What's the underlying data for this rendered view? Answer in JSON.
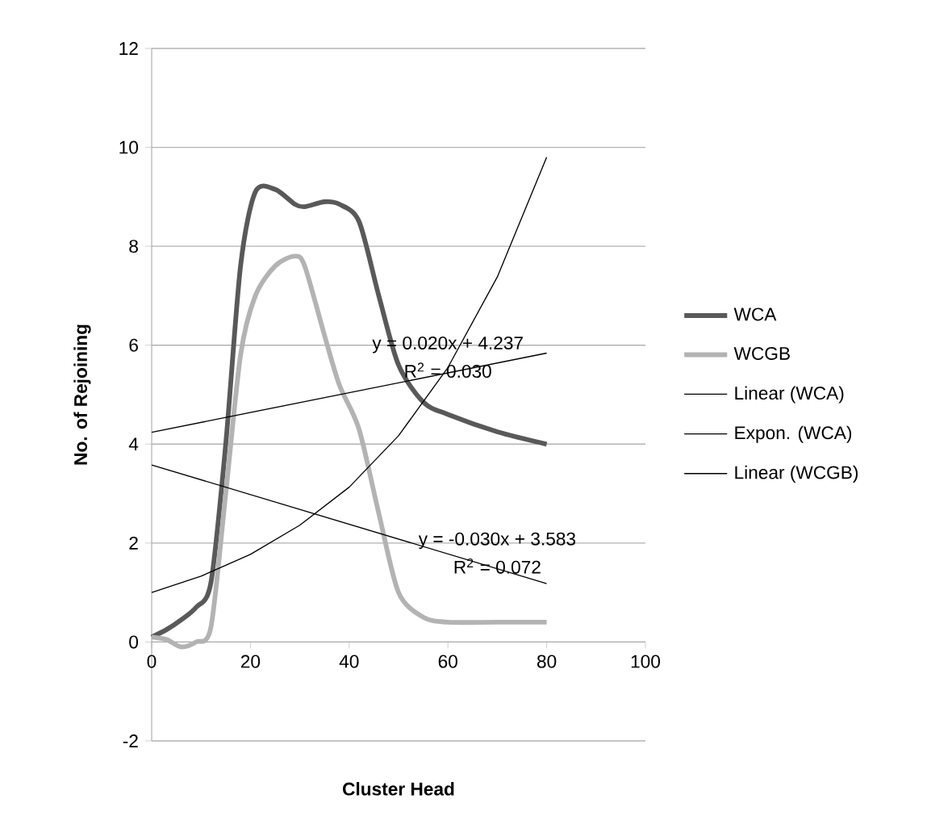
{
  "chart_data": {
    "type": "line",
    "xlabel": "Cluster Head",
    "ylabel": "No. of Rejoining",
    "x": [
      0,
      3,
      6,
      9,
      12,
      15,
      18,
      21,
      25,
      29,
      31,
      35,
      38,
      42,
      46,
      50,
      55,
      60,
      70,
      80
    ],
    "series": [
      {
        "name": "WCA",
        "color": "#595959",
        "values": [
          0.1,
          0.25,
          0.45,
          0.7,
          1.2,
          4.0,
          7.6,
          9.1,
          9.15,
          8.85,
          8.8,
          8.9,
          8.85,
          8.5,
          7.0,
          5.6,
          4.85,
          4.6,
          4.25,
          4.0
        ]
      },
      {
        "name": "WCGB",
        "color": "#b3b3b3",
        "values": [
          0.1,
          0.05,
          -0.1,
          0.0,
          0.3,
          3.0,
          5.8,
          7.0,
          7.6,
          7.8,
          7.6,
          6.2,
          5.2,
          4.3,
          2.6,
          1.0,
          0.5,
          0.4,
          0.4,
          0.4
        ]
      },
      {
        "name": "Linear (WCA)",
        "color": "#000000",
        "x": [
          0,
          80
        ],
        "values": [
          4.24,
          5.84
        ]
      },
      {
        "name": "Expon. (WCA)",
        "color": "#000000",
        "x": [
          0,
          10,
          20,
          30,
          40,
          50,
          60,
          70,
          80
        ],
        "values": [
          1.0,
          1.33,
          1.77,
          2.36,
          3.13,
          4.17,
          5.55,
          7.38,
          9.8
        ]
      },
      {
        "name": "Linear (WCGB)",
        "color": "#000000",
        "x": [
          0,
          80
        ],
        "values": [
          3.58,
          1.18
        ]
      }
    ],
    "annotations": [
      {
        "text": "y = 0.020x + 4.237",
        "x": 60,
        "y": 5.44
      },
      "R$^{2}$ = 0.030",
      {
        "text": "y = -0.030x + 3.583",
        "x": 70,
        "y": 1.48
      },
      "R$^{2}$ = 0.072"
    ],
    "xlim": [
      0,
      100
    ],
    "xticks": [
      0,
      20,
      40,
      60,
      80,
      100
    ],
    "ylim": [
      -2,
      12
    ],
    "yticks": [
      -2,
      0,
      2,
      4,
      6,
      8,
      10,
      12
    ],
    "grid": "y",
    "legend": "right",
    "marker": "none",
    "line_style": "solid"
  }
}
